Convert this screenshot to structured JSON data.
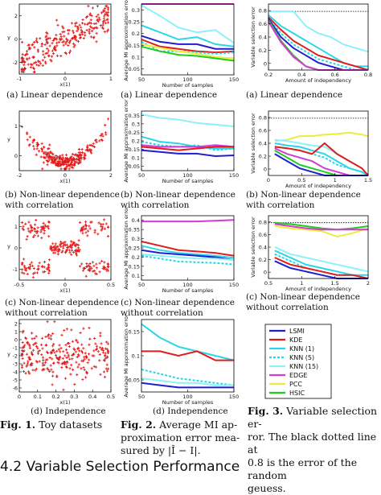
{
  "columns": {
    "col1": {
      "captions": [
        [
          "(a)  Linear dependence"
        ],
        [
          "(b)  Non-linear dependence",
          "with correlation"
        ],
        [
          "(c)  Non-linear dependence",
          "without correlation"
        ],
        [
          "(d)  Independence"
        ]
      ],
      "fig_label": "Fig. 1.",
      "fig_text": "Toy datasets"
    },
    "col2": {
      "captions": [
        [
          "(a)  Linear dependence"
        ],
        [
          "(b)  Non-linear    dependence",
          "with correlation"
        ],
        [
          "(c)  Non-linear    dependence",
          "without correlation"
        ],
        [
          "(d)  Independence"
        ]
      ],
      "fig_label": "Fig. 2.",
      "fig_lines": [
        "Average MI ap-",
        "proximation error mea-",
        "sured by |Î − I|."
      ]
    },
    "col3": {
      "captions": [
        [
          "(a)  Linear dependence"
        ],
        [
          "(b)  Non-linear  dependence",
          "with correlation"
        ],
        [
          "(c)  Non-linear  dependence",
          "without correlation"
        ]
      ],
      "fig_label": "Fig. 3.",
      "fig_lines": [
        "Variable selection er-",
        "ror. The black dotted line at",
        "0.8 is the error of the random",
        "geuess."
      ]
    }
  },
  "bottom_heading": "4.2   Variable Selection Performance",
  "legend": [
    {
      "name": "LSMI",
      "color": "#1f1fd0",
      "style": "solid"
    },
    {
      "name": "KDE",
      "color": "#e01c1c",
      "style": "solid"
    },
    {
      "name": "KNN (1)",
      "color": "#2ad6e8",
      "style": "solid"
    },
    {
      "name": "KNN (5)",
      "color": "#2ad6e8",
      "style": "dashed"
    },
    {
      "name": "KNN (15)",
      "color": "#8ef0f8",
      "style": "solid"
    },
    {
      "name": "EDGE",
      "color": "#d63ad6",
      "style": "solid"
    },
    {
      "name": "PCC",
      "color": "#ecec3a",
      "style": "solid"
    },
    {
      "name": "HSIC",
      "color": "#1fcc1f",
      "style": "solid"
    }
  ],
  "chart_data": [
    {
      "id": "scatter-a",
      "type": "scatter",
      "ylabel": "y",
      "xlabel": "x(1)",
      "xticks": [
        "-1",
        "0",
        "1"
      ],
      "yticks": [
        "2",
        "0",
        "-2"
      ],
      "color": "#e01c1c"
    },
    {
      "id": "scatter-b",
      "type": "scatter",
      "ylabel": "y",
      "xlabel": "x(1)",
      "xticks": [
        "-2",
        "0",
        "2"
      ],
      "yticks": [
        "1",
        "0"
      ],
      "color": "#e01c1c"
    },
    {
      "id": "scatter-c",
      "type": "scatter",
      "ylabel": "y",
      "xlabel": "x(1)",
      "xticks": [
        "-0.5",
        "0",
        "0.5"
      ],
      "yticks": [
        "1",
        "0",
        "-1"
      ],
      "color": "#e01c1c"
    },
    {
      "id": "scatter-d",
      "type": "scatter",
      "ylabel": "y",
      "xlabel": "x(1)",
      "xticks": [
        "0",
        "0.1",
        "0.2",
        "0.3",
        "0.4",
        "0.5"
      ],
      "yticks": [
        "2",
        "1",
        "0",
        "-1",
        "-2",
        "-3",
        "-4",
        "-5",
        "-6"
      ],
      "color": "#e01c1c"
    },
    {
      "id": "mi-a",
      "type": "line",
      "ylabel": "Average MI approximation error",
      "xlabel": "Number of samples",
      "x": [
        50,
        70,
        90,
        110,
        130,
        150
      ],
      "xlim": [
        50,
        150
      ],
      "ylim": [
        0,
        0.3
      ],
      "xticks": [
        "50",
        "100",
        "150"
      ],
      "yticks": [
        "0.3",
        "0.25",
        "0.2",
        "0.15",
        "0.1",
        "0.05"
      ],
      "series": [
        {
          "ref": "EDGE",
          "values": [
            0.3,
            0.3,
            0.3,
            0.3,
            0.3,
            0.3
          ]
        },
        {
          "ref": "KNN (15)",
          "values": [
            0.295,
            0.25,
            0.2,
            0.18,
            0.19,
            0.135
          ]
        },
        {
          "ref": "KNN (1)",
          "values": [
            0.21,
            0.18,
            0.15,
            0.16,
            0.13,
            0.12
          ]
        },
        {
          "ref": "LSMI",
          "values": [
            0.165,
            0.14,
            0.13,
            0.13,
            0.11,
            0.11
          ]
        },
        {
          "ref": "KDE",
          "values": [
            0.15,
            0.12,
            0.11,
            0.1,
            0.095,
            0.1
          ]
        },
        {
          "ref": "KNN (5)",
          "values": [
            0.14,
            0.1,
            0.1,
            0.095,
            0.09,
            0.095
          ]
        },
        {
          "ref": "PCC",
          "values": [
            0.13,
            0.115,
            0.1,
            0.09,
            0.075,
            0.07
          ]
        },
        {
          "ref": "HSIC",
          "values": [
            0.12,
            0.1,
            0.085,
            0.08,
            0.07,
            0.06
          ]
        }
      ]
    },
    {
      "id": "mi-b",
      "type": "line",
      "ylabel": "Average MI approximation error",
      "xlabel": "Number of samples",
      "x": [
        50,
        70,
        90,
        110,
        130,
        150
      ],
      "xlim": [
        50,
        150
      ],
      "ylim": [
        0,
        0.35
      ],
      "xticks": [
        "50",
        "100",
        "150"
      ],
      "yticks": [
        "0.35",
        "0.3",
        "0.25",
        "0.2",
        "0.15",
        "0.1",
        "0.05"
      ],
      "series": [
        {
          "ref": "KNN (15)",
          "values": [
            0.33,
            0.31,
            0.3,
            0.28,
            0.27,
            0.26
          ]
        },
        {
          "ref": "KNN (1)",
          "values": [
            0.2,
            0.17,
            0.16,
            0.14,
            0.13,
            0.13
          ]
        },
        {
          "ref": "KNN (5)",
          "values": [
            0.17,
            0.15,
            0.14,
            0.15,
            0.12,
            0.13
          ]
        },
        {
          "ref": "EDGE",
          "values": [
            0.15,
            0.14,
            0.14,
            0.14,
            0.15,
            0.14
          ]
        },
        {
          "ref": "KDE",
          "values": [
            0.14,
            0.13,
            0.12,
            0.13,
            0.14,
            0.14
          ]
        },
        {
          "ref": "LSMI",
          "values": [
            0.12,
            0.11,
            0.1,
            0.1,
            0.085,
            0.09
          ]
        }
      ]
    },
    {
      "id": "mi-c",
      "type": "line",
      "ylabel": "Average MI approximation error",
      "xlabel": "Number of samples",
      "x": [
        50,
        70,
        90,
        110,
        130,
        150
      ],
      "xlim": [
        50,
        150
      ],
      "ylim": [
        0,
        0.45
      ],
      "xticks": [
        "50",
        "100",
        "150"
      ],
      "yticks": [
        "0.4",
        "0.35",
        "0.3",
        "0.25",
        "0.2",
        "0.15",
        "0.1"
      ],
      "series": [
        {
          "ref": "EDGE",
          "values": [
            0.41,
            0.41,
            0.41,
            0.41,
            0.415,
            0.42
          ]
        },
        {
          "ref": "KDE",
          "values": [
            0.27,
            0.24,
            0.21,
            0.2,
            0.19,
            0.17
          ]
        },
        {
          "ref": "KNN (1)",
          "values": [
            0.24,
            0.21,
            0.19,
            0.18,
            0.17,
            0.155
          ]
        },
        {
          "ref": "LSMI",
          "values": [
            0.21,
            0.19,
            0.18,
            0.17,
            0.16,
            0.14
          ]
        },
        {
          "ref": "KNN (15)",
          "values": [
            0.18,
            0.17,
            0.16,
            0.15,
            0.15,
            0.14
          ]
        },
        {
          "ref": "KNN (5)",
          "values": [
            0.17,
            0.15,
            0.13,
            0.125,
            0.12,
            0.11
          ]
        }
      ]
    },
    {
      "id": "mi-d",
      "type": "line",
      "ylabel": "Average MI approximation error",
      "xlabel": "Number of samples",
      "x": [
        50,
        70,
        90,
        110,
        130,
        150
      ],
      "xlim": [
        50,
        150
      ],
      "ylim": [
        0.04,
        0.2
      ],
      "xticks": [
        "50",
        "100",
        "150"
      ],
      "yticks": [
        "0.15",
        "0.1",
        "0.05"
      ],
      "series": [
        {
          "ref": "KNN (1)",
          "values": [
            0.19,
            0.16,
            0.14,
            0.13,
            0.12,
            0.11
          ]
        },
        {
          "ref": "KDE",
          "values": [
            0.13,
            0.13,
            0.12,
            0.13,
            0.11,
            0.11
          ]
        },
        {
          "ref": "KNN (5)",
          "values": [
            0.09,
            0.08,
            0.07,
            0.065,
            0.06,
            0.055
          ]
        },
        {
          "ref": "KNN (15)",
          "values": [
            0.07,
            0.065,
            0.06,
            0.06,
            0.055,
            0.055
          ]
        },
        {
          "ref": "LSMI",
          "values": [
            0.06,
            0.055,
            0.05,
            0.05,
            0.05,
            0.05
          ]
        }
      ]
    },
    {
      "id": "vs-a",
      "type": "line",
      "ylabel": "Variable selection error",
      "xlabel": "Amount of independency",
      "x": [
        0.1,
        0.2,
        0.3,
        0.4,
        0.5,
        0.6,
        0.7,
        0.8,
        0.9
      ],
      "xlim": [
        0.1,
        0.9
      ],
      "ylim": [
        0,
        0.9
      ],
      "xticks": [
        "0.2",
        "0.4",
        "0.6",
        "0.8"
      ],
      "yticks": [
        "0.8",
        "0.6",
        "0.4",
        "0.2",
        "0"
      ],
      "random_guess": 0.8,
      "series": [
        {
          "ref": "KNN (15)",
          "values": [
            0.8,
            0.8,
            0.8,
            0.6,
            0.5,
            0.45,
            0.35,
            0.3,
            0.25
          ]
        },
        {
          "ref": "KNN (1)",
          "values": [
            0.75,
            0.6,
            0.5,
            0.4,
            0.3,
            0.2,
            0.1,
            0.05,
            0.05
          ]
        },
        {
          "ref": "KDE",
          "values": [
            0.72,
            0.55,
            0.4,
            0.3,
            0.2,
            0.15,
            0.1,
            0.05,
            0.0
          ]
        },
        {
          "ref": "KNN (5)",
          "values": [
            0.7,
            0.5,
            0.35,
            0.25,
            0.15,
            0.1,
            0.05,
            0.0,
            0.0
          ]
        },
        {
          "ref": "LSMI",
          "values": [
            0.7,
            0.45,
            0.3,
            0.2,
            0.1,
            0.05,
            0.0,
            0.0,
            0.0
          ]
        },
        {
          "ref": "PCC",
          "values": [
            0.68,
            0.4,
            0.2,
            0.05,
            0.0,
            0.0,
            0.0,
            0.0,
            0.0
          ]
        },
        {
          "ref": "HSIC",
          "values": [
            0.68,
            0.4,
            0.2,
            0.05,
            0.0,
            0.0,
            0.0,
            0.0,
            0.0
          ]
        },
        {
          "ref": "EDGE",
          "values": [
            0.66,
            0.38,
            0.18,
            0.05,
            0.0,
            0.0,
            0.0,
            0.0,
            0.0
          ]
        }
      ]
    },
    {
      "id": "vs-b",
      "type": "line",
      "ylabel": "Variable selection error",
      "xlabel": "Amount of independency",
      "x": [
        0.1,
        0.3,
        0.5,
        0.7,
        0.9,
        1.1,
        1.3,
        1.5,
        1.6
      ],
      "xlim": [
        0,
        1.6
      ],
      "ylim": [
        0,
        0.9
      ],
      "xticks": [
        "0",
        "0.5",
        "1",
        "1.5"
      ],
      "yticks": [
        "0.8",
        "0.6",
        "0.4",
        "0.2",
        "0"
      ],
      "random_guess": 0.8,
      "series": [
        {
          "ref": "PCC",
          "values": [
            0.48,
            0.5,
            0.55,
            0.55,
            0.57,
            0.58,
            0.6,
            0.57,
            0.55
          ]
        },
        {
          "ref": "KNN (15)",
          "values": [
            0.5,
            0.48,
            0.45,
            0.42,
            0.4,
            0.3,
            0.2,
            0.1,
            0.0
          ]
        },
        {
          "ref": "KNN (1)",
          "values": [
            0.45,
            0.42,
            0.4,
            0.35,
            0.3,
            0.2,
            0.1,
            0.05,
            0.0
          ]
        },
        {
          "ref": "KNN (5)",
          "values": [
            0.4,
            0.38,
            0.35,
            0.3,
            0.25,
            0.15,
            0.1,
            0.05,
            0.0
          ]
        },
        {
          "ref": "KDE",
          "values": [
            0.4,
            0.38,
            0.35,
            0.3,
            0.45,
            0.3,
            0.2,
            0.1,
            0.0
          ]
        },
        {
          "ref": "EDGE",
          "values": [
            0.38,
            0.3,
            0.25,
            0.2,
            0.1,
            0.05,
            0.0,
            0.0,
            0.0
          ]
        },
        {
          "ref": "HSIC",
          "values": [
            0.35,
            0.25,
            0.15,
            0.1,
            0.05,
            0.0,
            0.0,
            0.0,
            0.0
          ]
        },
        {
          "ref": "LSMI",
          "values": [
            0.3,
            0.2,
            0.1,
            0.05,
            0.0,
            0.0,
            0.0,
            0.0,
            0.0
          ]
        }
      ]
    },
    {
      "id": "vs-c",
      "type": "line",
      "ylabel": "Variable selection error",
      "xlabel": "Amount of independency",
      "x": [
        0.5,
        0.75,
        1.0,
        1.25,
        1.5,
        1.75,
        2.0
      ],
      "xlim": [
        0.4,
        2.0
      ],
      "ylim": [
        0,
        0.9
      ],
      "xticks": [
        "0.5",
        "1",
        "1.5",
        "2"
      ],
      "yticks": [
        "0.8",
        "0.6",
        "0.4",
        "0.2",
        "0"
      ],
      "random_guess": 0.8,
      "series": [
        {
          "ref": "HSIC",
          "values": [
            0.8,
            0.78,
            0.75,
            0.72,
            0.7,
            0.72,
            0.75
          ]
        },
        {
          "ref": "PCC",
          "values": [
            0.75,
            0.72,
            0.7,
            0.68,
            0.6,
            0.65,
            0.72
          ]
        },
        {
          "ref": "EDGE",
          "values": [
            0.78,
            0.75,
            0.72,
            0.7,
            0.7,
            0.7,
            0.7
          ]
        },
        {
          "ref": "KNN (15)",
          "values": [
            0.45,
            0.35,
            0.3,
            0.25,
            0.2,
            0.15,
            0.1
          ]
        },
        {
          "ref": "KNN (1)",
          "values": [
            0.4,
            0.3,
            0.2,
            0.15,
            0.1,
            0.05,
            0.05
          ]
        },
        {
          "ref": "KNN (5)",
          "values": [
            0.35,
            0.25,
            0.15,
            0.1,
            0.05,
            0.05,
            0.0
          ]
        },
        {
          "ref": "KDE",
          "values": [
            0.3,
            0.2,
            0.15,
            0.1,
            0.05,
            0.05,
            0.0
          ]
        },
        {
          "ref": "LSMI",
          "values": [
            0.25,
            0.15,
            0.1,
            0.05,
            0.0,
            0.0,
            0.0
          ]
        }
      ]
    }
  ]
}
